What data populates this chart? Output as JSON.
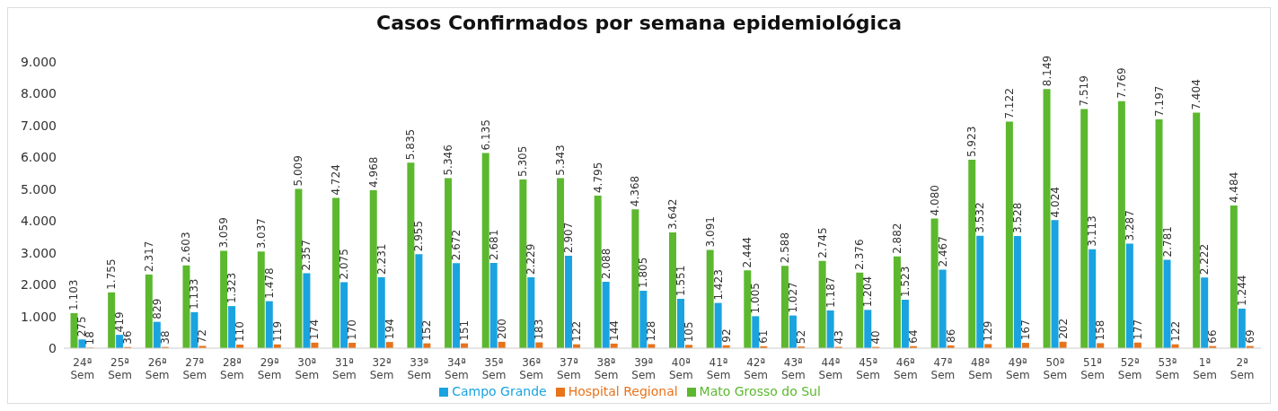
{
  "chart_data": {
    "type": "bar",
    "title": "Casos Confirmados por semana epidemiológica",
    "categories": [
      "24ª Sem",
      "25ª Sem",
      "26ª Sem",
      "27ª Sem",
      "28ª Sem",
      "29ª Sem",
      "30ª Sem",
      "31ª Sem",
      "32ª Sem",
      "33ª Sem",
      "34ª Sem",
      "35ª Sem",
      "36ª Sem",
      "37ª Sem",
      "38ª Sem",
      "39ª Sem",
      "40ª Sem",
      "41ª Sem",
      "42ª Sem",
      "43ª Sem",
      "44ª Sem",
      "45ª Sem",
      "46ª Sem",
      "47ª Sem",
      "48ª Sem",
      "49ª Sem",
      "50ª Sem",
      "51ª Sem",
      "52ª Sem",
      "53ª Sem",
      "1ª Sem",
      "2ª Sem"
    ],
    "series": [
      {
        "name": "Mato Grosso do Sul",
        "color": "#5cb82e",
        "values": [
          1103,
          1755,
          2317,
          2603,
          3059,
          3037,
          5009,
          4724,
          4968,
          5835,
          5346,
          6135,
          5305,
          5343,
          4795,
          4368,
          3642,
          3091,
          2444,
          2588,
          2745,
          2376,
          2882,
          4080,
          5923,
          7122,
          8149,
          7519,
          7769,
          7197,
          7404,
          4484
        ],
        "value_labels": [
          "1.103",
          "1.755",
          "2.317",
          "2.603",
          "3.059",
          "3.037",
          "5.009",
          "4.724",
          "4.968",
          "5.835",
          "5.346",
          "6.135",
          "5.305",
          "5.343",
          "4.795",
          "4.368",
          "3.642",
          "3.091",
          "2.444",
          "2.588",
          "2.745",
          "2.376",
          "2.882",
          "4.080",
          "5.923",
          "7.122",
          "8.149",
          "7.519",
          "7.769",
          "7.197",
          "7.404",
          "4.484"
        ]
      },
      {
        "name": "Campo Grande",
        "color": "#1aa3e0",
        "values": [
          275,
          419,
          829,
          1133,
          1323,
          1478,
          2357,
          2075,
          2231,
          2955,
          2672,
          2681,
          2229,
          2907,
          2088,
          1805,
          1551,
          1423,
          1005,
          1027,
          1187,
          1204,
          1523,
          2467,
          3532,
          3528,
          4024,
          3113,
          3287,
          2781,
          2222,
          1244
        ],
        "value_labels": [
          "275",
          "419",
          "829",
          "1.133",
          "1.323",
          "1.478",
          "2.357",
          "2.075",
          "2.231",
          "2.955",
          "2.672",
          "2.681",
          "2.229",
          "2.907",
          "2.088",
          "1.805",
          "1.551",
          "1.423",
          "1.005",
          "1.027",
          "1.187",
          "1.204",
          "1.523",
          "2.467",
          "3.532",
          "3.528",
          "4.024",
          "3.113",
          "3.287",
          "2.781",
          "2.222",
          "1.244"
        ]
      },
      {
        "name": "Hospital Regional",
        "color": "#e8731a",
        "values": [
          18,
          36,
          38,
          72,
          110,
          119,
          174,
          170,
          194,
          152,
          151,
          200,
          183,
          122,
          144,
          128,
          105,
          92,
          61,
          52,
          43,
          40,
          64,
          86,
          129,
          167,
          202,
          158,
          177,
          122,
          66,
          69
        ],
        "value_labels": [
          "18",
          "36",
          "38",
          "72",
          "110",
          "119",
          "174",
          "170",
          "194",
          "152",
          "151",
          "200",
          "183",
          "122",
          "144",
          "128",
          "105",
          "92",
          "61",
          "52",
          "43",
          "40",
          "64",
          "86",
          "129",
          "167",
          "202",
          "158",
          "177",
          "122",
          "66",
          "69"
        ]
      }
    ],
    "ylim": [
      0,
      9000
    ],
    "yticks": [
      {
        "value": 0,
        "label": "0"
      },
      {
        "value": 1000,
        "label": "1.000"
      },
      {
        "value": 2000,
        "label": "2.000"
      },
      {
        "value": 3000,
        "label": "3.000"
      },
      {
        "value": 4000,
        "label": "4.000"
      },
      {
        "value": 5000,
        "label": "5.000"
      },
      {
        "value": 6000,
        "label": "6.000"
      },
      {
        "value": 7000,
        "label": "7.000"
      },
      {
        "value": 8000,
        "label": "8.000"
      },
      {
        "value": 9000,
        "label": "9.000"
      }
    ],
    "grid": false,
    "legend": "bottom"
  }
}
